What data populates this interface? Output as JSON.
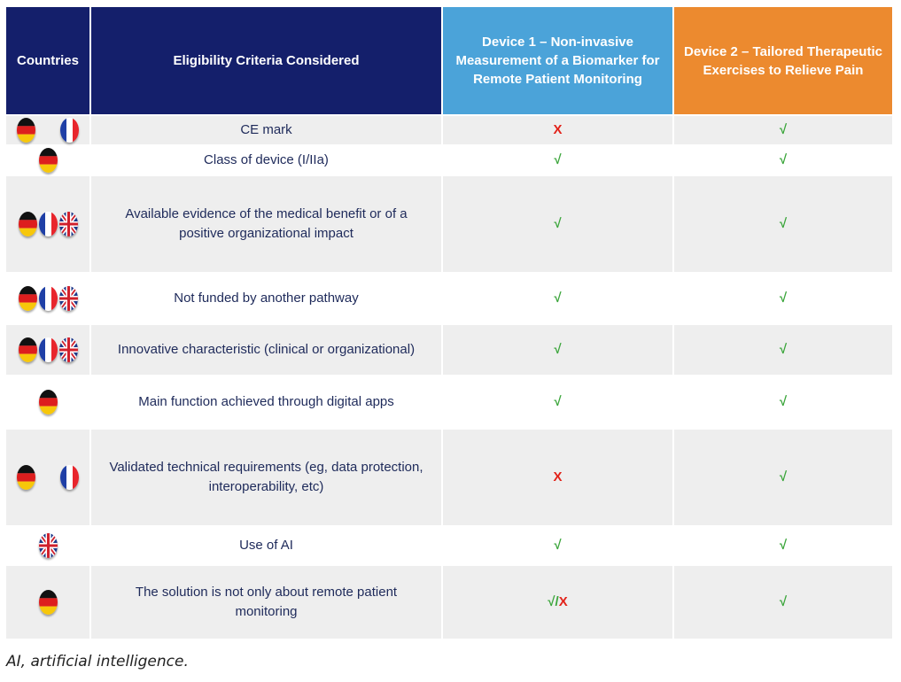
{
  "headers": {
    "countries": "Countries",
    "criteria": "Eligibility Criteria Considered",
    "device1": "Device 1 – Non-invasive Measurement of a Biomarker for Remote Patient Monitoring",
    "device2": "Device 2 – Tailored Therapeutic Exercises to Relieve Pain"
  },
  "colors": {
    "navy": "#141f6b",
    "blue": "#4ba3d9",
    "orange": "#ec8a2f",
    "check": "#3aa53a",
    "cross": "#e2231a"
  },
  "rows": [
    {
      "flags": [
        "germany-flag-icon",
        "france-flag-icon"
      ],
      "criterion": "CE mark",
      "device1": "X",
      "device2": "√"
    },
    {
      "flags": [
        "germany-flag-icon"
      ],
      "criterion": "Class of device (I/IIa)",
      "device1": "√",
      "device2": "√"
    },
    {
      "flags": [
        "germany-flag-icon",
        "france-flag-icon",
        "uk-flag-icon"
      ],
      "criterion": "Available evidence of the medical benefit or of a positive organizational impact",
      "device1": "√",
      "device2": "√"
    },
    {
      "flags": [
        "germany-flag-icon",
        "france-flag-icon",
        "uk-flag-icon"
      ],
      "criterion": "Not funded by another pathway",
      "device1": "√",
      "device2": "√"
    },
    {
      "flags": [
        "germany-flag-icon",
        "france-flag-icon",
        "uk-flag-icon"
      ],
      "criterion": "Innovative characteristic (clinical or organizational)",
      "device1": "√",
      "device2": "√"
    },
    {
      "flags": [
        "germany-flag-icon"
      ],
      "criterion": "Main  function achieved through digital apps",
      "device1": "√",
      "device2": "√"
    },
    {
      "flags": [
        "germany-flag-icon",
        "france-flag-icon"
      ],
      "criterion": "Validated technical requirements (eg, data protection, interoperability, etc)",
      "device1": "X",
      "device2": "√"
    },
    {
      "flags": [
        "uk-flag-icon"
      ],
      "criterion": "Use of AI",
      "device1": "√",
      "device2": "√"
    },
    {
      "flags": [
        "germany-flag-icon"
      ],
      "criterion": "The solution is not only about remote patient monitoring",
      "device1": "√/X",
      "device2": "√"
    }
  ],
  "caption": "AI, artificial intelligence."
}
